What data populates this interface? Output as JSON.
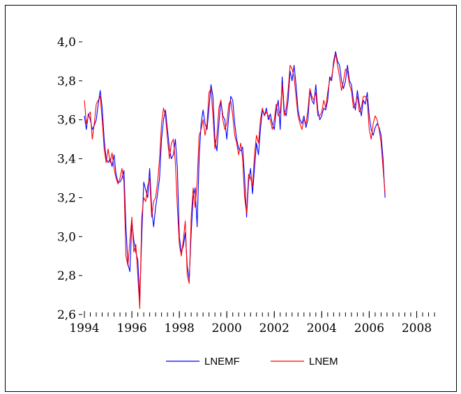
{
  "chart_data": {
    "type": "line",
    "title": "",
    "xlabel": "",
    "ylabel": "",
    "xlim": [
      1994.0,
      2008.75
    ],
    "ylim": [
      2.6,
      4.0
    ],
    "x_start": 1994.0,
    "x_step": 0.0833333,
    "xticks": [
      {
        "value": 1994,
        "label": "1994"
      },
      {
        "value": 1996,
        "label": "1996"
      },
      {
        "value": 1998,
        "label": "1998"
      },
      {
        "value": 2000,
        "label": "2000"
      },
      {
        "value": 2002,
        "label": "2002"
      },
      {
        "value": 2004,
        "label": "2004"
      },
      {
        "value": 2006,
        "label": "2006"
      },
      {
        "value": 2008,
        "label": "2008"
      }
    ],
    "yticks": [
      {
        "value": 2.6,
        "label": "2,6"
      },
      {
        "value": 2.8,
        "label": "2,8"
      },
      {
        "value": 3.0,
        "label": "3,0"
      },
      {
        "value": 3.2,
        "label": "3,2"
      },
      {
        "value": 3.4,
        "label": "3,4"
      },
      {
        "value": 3.6,
        "label": "3,6"
      },
      {
        "value": 3.8,
        "label": "3,8"
      },
      {
        "value": 4.0,
        "label": "4,0"
      }
    ],
    "legend_position": "bottom-center",
    "series": [
      {
        "name": "LNEMF",
        "color": "#0000ff",
        "values": [
          3.62,
          3.55,
          3.63,
          3.6,
          3.55,
          3.57,
          3.6,
          3.68,
          3.75,
          3.66,
          3.5,
          3.4,
          3.38,
          3.4,
          3.36,
          3.42,
          3.32,
          3.28,
          3.28,
          3.3,
          3.34,
          3.05,
          2.86,
          2.82,
          3.08,
          2.98,
          2.92,
          2.88,
          2.68,
          3.0,
          3.28,
          3.24,
          3.2,
          3.35,
          3.15,
          3.05,
          3.15,
          3.22,
          3.3,
          3.5,
          3.6,
          3.65,
          3.55,
          3.45,
          3.4,
          3.42,
          3.5,
          3.35,
          3.0,
          2.92,
          2.95,
          3.02,
          2.85,
          2.78,
          3.02,
          3.2,
          3.25,
          3.05,
          3.4,
          3.58,
          3.65,
          3.58,
          3.55,
          3.66,
          3.78,
          3.72,
          3.5,
          3.44,
          3.58,
          3.7,
          3.62,
          3.6,
          3.5,
          3.62,
          3.72,
          3.7,
          3.58,
          3.5,
          3.45,
          3.44,
          3.46,
          3.3,
          3.1,
          3.28,
          3.35,
          3.22,
          3.35,
          3.48,
          3.42,
          3.55,
          3.65,
          3.62,
          3.66,
          3.6,
          3.63,
          3.58,
          3.55,
          3.65,
          3.7,
          3.55,
          3.82,
          3.65,
          3.62,
          3.7,
          3.85,
          3.8,
          3.88,
          3.78,
          3.65,
          3.6,
          3.58,
          3.62,
          3.56,
          3.6,
          3.75,
          3.7,
          3.68,
          3.78,
          3.65,
          3.6,
          3.62,
          3.66,
          3.65,
          3.7,
          3.82,
          3.8,
          3.9,
          3.95,
          3.9,
          3.88,
          3.8,
          3.76,
          3.8,
          3.88,
          3.8,
          3.78,
          3.7,
          3.65,
          3.75,
          3.68,
          3.62,
          3.7,
          3.68,
          3.74,
          3.62,
          3.55,
          3.52,
          3.56,
          3.58,
          3.56,
          3.52,
          3.4,
          3.2
        ]
      },
      {
        "name": "LNEM",
        "color": "#ff0000",
        "values": [
          3.7,
          3.58,
          3.62,
          3.64,
          3.5,
          3.58,
          3.68,
          3.7,
          3.72,
          3.6,
          3.45,
          3.38,
          3.45,
          3.38,
          3.43,
          3.35,
          3.3,
          3.27,
          3.3,
          3.35,
          3.28,
          2.9,
          2.85,
          2.98,
          3.1,
          2.92,
          2.96,
          2.8,
          2.63,
          3.1,
          3.2,
          3.18,
          3.26,
          3.3,
          3.1,
          3.18,
          3.2,
          3.28,
          3.4,
          3.58,
          3.66,
          3.62,
          3.5,
          3.4,
          3.48,
          3.5,
          3.38,
          3.15,
          2.96,
          2.9,
          2.98,
          3.08,
          2.8,
          2.76,
          3.1,
          3.25,
          3.15,
          3.28,
          3.52,
          3.55,
          3.6,
          3.52,
          3.58,
          3.74,
          3.76,
          3.62,
          3.45,
          3.52,
          3.66,
          3.7,
          3.6,
          3.55,
          3.58,
          3.68,
          3.7,
          3.62,
          3.52,
          3.48,
          3.42,
          3.48,
          3.4,
          3.2,
          3.12,
          3.32,
          3.3,
          3.26,
          3.42,
          3.52,
          3.48,
          3.6,
          3.66,
          3.62,
          3.64,
          3.62,
          3.6,
          3.55,
          3.6,
          3.68,
          3.62,
          3.64,
          3.78,
          3.62,
          3.66,
          3.75,
          3.88,
          3.86,
          3.82,
          3.72,
          3.62,
          3.58,
          3.55,
          3.6,
          3.58,
          3.65,
          3.76,
          3.72,
          3.7,
          3.74,
          3.62,
          3.62,
          3.64,
          3.7,
          3.66,
          3.74,
          3.8,
          3.82,
          3.88,
          3.94,
          3.88,
          3.82,
          3.75,
          3.8,
          3.86,
          3.85,
          3.78,
          3.75,
          3.66,
          3.68,
          3.72,
          3.64,
          3.66,
          3.72,
          3.72,
          3.7,
          3.55,
          3.5,
          3.58,
          3.62,
          3.6,
          3.55,
          3.48,
          3.35,
          3.22
        ]
      }
    ]
  }
}
